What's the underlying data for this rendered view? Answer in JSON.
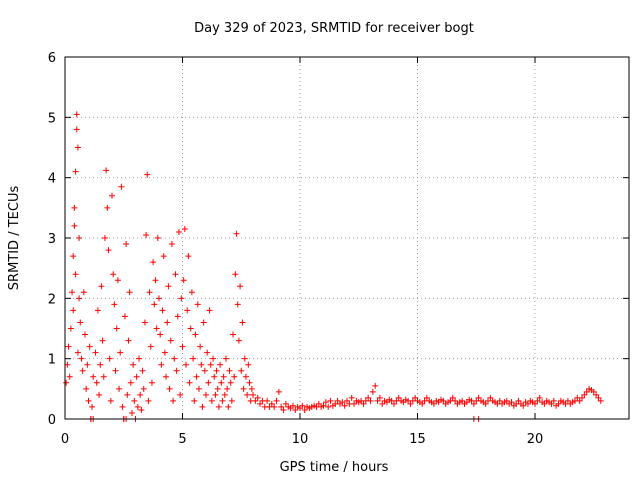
{
  "chart_data": {
    "type": "scatter",
    "title": "Day 329 of 2023, SRMTID for receiver bogt",
    "xlabel": "GPS time / hours",
    "ylabel": "SRMTID / TECUs",
    "xlim": [
      0,
      24
    ],
    "ylim": [
      0,
      6
    ],
    "xticks": [
      0,
      5,
      10,
      15,
      20
    ],
    "yticks": [
      0,
      1,
      2,
      3,
      4,
      5,
      6
    ],
    "grid": true,
    "marker": "+",
    "color": "#ff0000",
    "series": [
      {
        "name": "SRMTID",
        "points": [
          [
            0.05,
            0.6
          ],
          [
            0.1,
            0.9
          ],
          [
            0.15,
            1.2
          ],
          [
            0.2,
            0.7
          ],
          [
            0.25,
            1.5
          ],
          [
            0.3,
            2.1
          ],
          [
            0.35,
            1.8
          ],
          [
            0.35,
            2.7
          ],
          [
            0.4,
            3.5
          ],
          [
            0.4,
            3.2
          ],
          [
            0.45,
            4.1
          ],
          [
            0.45,
            2.4
          ],
          [
            0.5,
            4.8
          ],
          [
            0.5,
            5.05
          ],
          [
            0.55,
            4.5
          ],
          [
            0.55,
            1.1
          ],
          [
            0.6,
            3.0
          ],
          [
            0.6,
            2.0
          ],
          [
            0.65,
            1.6
          ],
          [
            0.7,
            1.0
          ],
          [
            0.75,
            0.8
          ],
          [
            0.8,
            2.1
          ],
          [
            0.85,
            1.4
          ],
          [
            0.9,
            0.5
          ],
          [
            0.95,
            0.9
          ],
          [
            1.0,
            0.3
          ],
          [
            1.05,
            1.2
          ],
          [
            1.1,
            0.0
          ],
          [
            1.15,
            0.2
          ],
          [
            1.2,
            0.7
          ],
          [
            1.3,
            1.1
          ],
          [
            1.35,
            0.6
          ],
          [
            1.4,
            1.8
          ],
          [
            1.45,
            0.4
          ],
          [
            1.5,
            0.9
          ],
          [
            1.55,
            2.2
          ],
          [
            1.6,
            1.3
          ],
          [
            1.65,
            0.7
          ],
          [
            1.7,
            3.0
          ],
          [
            1.75,
            4.12
          ],
          [
            1.8,
            3.5
          ],
          [
            1.85,
            2.8
          ],
          [
            1.9,
            1.0
          ],
          [
            1.95,
            0.3
          ],
          [
            2.0,
            3.7
          ],
          [
            2.05,
            2.4
          ],
          [
            2.1,
            1.9
          ],
          [
            2.15,
            0.8
          ],
          [
            2.2,
            1.5
          ],
          [
            2.25,
            2.3
          ],
          [
            2.3,
            0.5
          ],
          [
            2.35,
            1.1
          ],
          [
            2.4,
            3.85
          ],
          [
            2.45,
            0.2
          ],
          [
            2.5,
            0.0
          ],
          [
            2.55,
            1.7
          ],
          [
            2.6,
            2.9
          ],
          [
            2.65,
            0.4
          ],
          [
            2.7,
            1.3
          ],
          [
            2.75,
            2.1
          ],
          [
            2.8,
            0.6
          ],
          [
            2.85,
            0.1
          ],
          [
            2.9,
            0.9
          ],
          [
            2.95,
            0.3
          ],
          [
            3.0,
            0.0
          ],
          [
            3.05,
            0.7
          ],
          [
            3.1,
            0.2
          ],
          [
            3.15,
            1.0
          ],
          [
            3.2,
            0.4
          ],
          [
            3.25,
            0.15
          ],
          [
            3.3,
            0.8
          ],
          [
            3.35,
            0.5
          ],
          [
            3.4,
            1.6
          ],
          [
            3.45,
            3.05
          ],
          [
            3.5,
            4.05
          ],
          [
            3.55,
            0.3
          ],
          [
            3.6,
            2.1
          ],
          [
            3.65,
            1.2
          ],
          [
            3.7,
            0.6
          ],
          [
            3.75,
            2.6
          ],
          [
            3.8,
            1.9
          ],
          [
            3.85,
            2.3
          ],
          [
            3.9,
            1.5
          ],
          [
            3.95,
            3.0
          ],
          [
            4.0,
            2.0
          ],
          [
            4.05,
            1.4
          ],
          [
            4.1,
            0.9
          ],
          [
            4.15,
            1.8
          ],
          [
            4.2,
            2.7
          ],
          [
            4.25,
            1.1
          ],
          [
            4.3,
            0.7
          ],
          [
            4.35,
            1.6
          ],
          [
            4.4,
            2.2
          ],
          [
            4.45,
            0.5
          ],
          [
            4.5,
            1.3
          ],
          [
            4.55,
            2.9
          ],
          [
            4.6,
            0.3
          ],
          [
            4.65,
            1.0
          ],
          [
            4.7,
            2.4
          ],
          [
            4.75,
            0.8
          ],
          [
            4.8,
            1.7
          ],
          [
            4.85,
            3.1
          ],
          [
            4.9,
            0.4
          ],
          [
            4.95,
            2.0
          ],
          [
            5.0,
            1.2
          ],
          [
            5.05,
            2.3
          ],
          [
            5.1,
            3.15
          ],
          [
            5.15,
            0.9
          ],
          [
            5.2,
            1.8
          ],
          [
            5.25,
            2.7
          ],
          [
            5.3,
            0.6
          ],
          [
            5.35,
            1.5
          ],
          [
            5.4,
            2.1
          ],
          [
            5.45,
            1.0
          ],
          [
            5.5,
            0.3
          ],
          [
            5.55,
            1.4
          ],
          [
            5.6,
            0.7
          ],
          [
            5.65,
            1.9
          ],
          [
            5.7,
            0.5
          ],
          [
            5.75,
            1.2
          ],
          [
            5.8,
            0.9
          ],
          [
            5.85,
            0.2
          ],
          [
            5.9,
            1.6
          ],
          [
            5.95,
            0.8
          ],
          [
            6.0,
            0.4
          ],
          [
            6.05,
            1.1
          ],
          [
            6.1,
            0.6
          ],
          [
            6.15,
            1.8
          ],
          [
            6.2,
            0.9
          ],
          [
            6.25,
            0.3
          ],
          [
            6.3,
            1.0
          ],
          [
            6.35,
            0.7
          ],
          [
            6.4,
            0.4
          ],
          [
            6.45,
            0.8
          ],
          [
            6.5,
            0.5
          ],
          [
            6.55,
            0.2
          ],
          [
            6.6,
            0.9
          ],
          [
            6.65,
            0.6
          ],
          [
            6.7,
            0.3
          ],
          [
            6.75,
            0.7
          ],
          [
            6.8,
            0.4
          ],
          [
            6.85,
            1.0
          ],
          [
            6.9,
            0.5
          ],
          [
            6.95,
            0.2
          ],
          [
            7.0,
            0.8
          ],
          [
            7.05,
            0.6
          ],
          [
            7.1,
            0.3
          ],
          [
            7.15,
            1.4
          ],
          [
            7.2,
            0.7
          ],
          [
            7.25,
            2.4
          ],
          [
            7.3,
            3.07
          ],
          [
            7.35,
            1.9
          ],
          [
            7.4,
            1.3
          ],
          [
            7.45,
            2.2
          ],
          [
            7.5,
            0.8
          ],
          [
            7.55,
            1.6
          ],
          [
            7.6,
            0.5
          ],
          [
            7.65,
            1.0
          ],
          [
            7.7,
            0.7
          ],
          [
            7.75,
            0.4
          ],
          [
            7.8,
            0.9
          ],
          [
            7.85,
            0.6
          ],
          [
            7.9,
            0.3
          ],
          [
            7.95,
            0.5
          ],
          [
            8.0,
            0.4
          ],
          [
            8.1,
            0.3
          ],
          [
            8.2,
            0.35
          ],
          [
            8.3,
            0.25
          ],
          [
            8.4,
            0.3
          ],
          [
            8.5,
            0.2
          ],
          [
            8.6,
            0.3
          ],
          [
            8.7,
            0.2
          ],
          [
            8.8,
            0.25
          ],
          [
            8.9,
            0.2
          ],
          [
            9.0,
            0.3
          ],
          [
            9.1,
            0.45
          ],
          [
            9.2,
            0.2
          ],
          [
            9.3,
            0.15
          ],
          [
            9.4,
            0.25
          ],
          [
            9.5,
            0.2
          ],
          [
            9.6,
            0.18
          ],
          [
            9.7,
            0.22
          ],
          [
            9.8,
            0.15
          ],
          [
            9.9,
            0.2
          ],
          [
            10.0,
            0.18
          ],
          [
            10.1,
            0.22
          ],
          [
            10.2,
            0.15
          ],
          [
            10.3,
            0.2
          ],
          [
            10.4,
            0.18
          ],
          [
            10.5,
            0.2
          ],
          [
            10.6,
            0.22
          ],
          [
            10.7,
            0.2
          ],
          [
            10.8,
            0.25
          ],
          [
            10.9,
            0.2
          ],
          [
            11.0,
            0.22
          ],
          [
            11.1,
            0.28
          ],
          [
            11.2,
            0.2
          ],
          [
            11.3,
            0.3
          ],
          [
            11.4,
            0.22
          ],
          [
            11.5,
            0.25
          ],
          [
            11.6,
            0.3
          ],
          [
            11.7,
            0.25
          ],
          [
            11.8,
            0.28
          ],
          [
            11.9,
            0.22
          ],
          [
            12.0,
            0.3
          ],
          [
            12.1,
            0.25
          ],
          [
            12.2,
            0.35
          ],
          [
            12.3,
            0.25
          ],
          [
            12.4,
            0.3
          ],
          [
            12.5,
            0.28
          ],
          [
            12.6,
            0.3
          ],
          [
            12.7,
            0.25
          ],
          [
            12.8,
            0.3
          ],
          [
            12.9,
            0.35
          ],
          [
            13.0,
            0.3
          ],
          [
            13.1,
            0.45
          ],
          [
            13.2,
            0.55
          ],
          [
            13.3,
            0.3
          ],
          [
            13.4,
            0.35
          ],
          [
            13.5,
            0.25
          ],
          [
            13.6,
            0.3
          ],
          [
            13.7,
            0.28
          ],
          [
            13.8,
            0.32
          ],
          [
            13.9,
            0.3
          ],
          [
            14.0,
            0.25
          ],
          [
            14.1,
            0.3
          ],
          [
            14.2,
            0.35
          ],
          [
            14.3,
            0.3
          ],
          [
            14.4,
            0.28
          ],
          [
            14.5,
            0.32
          ],
          [
            14.6,
            0.3
          ],
          [
            14.7,
            0.25
          ],
          [
            14.8,
            0.3
          ],
          [
            14.9,
            0.35
          ],
          [
            15.0,
            0.3
          ],
          [
            15.1,
            0.28
          ],
          [
            15.2,
            0.25
          ],
          [
            15.3,
            0.3
          ],
          [
            15.4,
            0.35
          ],
          [
            15.5,
            0.3
          ],
          [
            15.6,
            0.28
          ],
          [
            15.7,
            0.25
          ],
          [
            15.8,
            0.3
          ],
          [
            15.9,
            0.28
          ],
          [
            16.0,
            0.32
          ],
          [
            16.1,
            0.3
          ],
          [
            16.2,
            0.25
          ],
          [
            16.3,
            0.28
          ],
          [
            16.4,
            0.3
          ],
          [
            16.5,
            0.35
          ],
          [
            16.6,
            0.3
          ],
          [
            16.7,
            0.25
          ],
          [
            16.8,
            0.28
          ],
          [
            16.9,
            0.3
          ],
          [
            17.0,
            0.25
          ],
          [
            17.1,
            0.28
          ],
          [
            17.2,
            0.32
          ],
          [
            17.3,
            0.3
          ],
          [
            17.4,
            0.25
          ],
          [
            17.5,
            0.3
          ],
          [
            17.6,
            0.35
          ],
          [
            17.7,
            0.3
          ],
          [
            17.8,
            0.28
          ],
          [
            17.9,
            0.25
          ],
          [
            18.0,
            0.3
          ],
          [
            18.1,
            0.35
          ],
          [
            18.2,
            0.3
          ],
          [
            18.3,
            0.28
          ],
          [
            18.4,
            0.25
          ],
          [
            18.5,
            0.3
          ],
          [
            18.6,
            0.25
          ],
          [
            18.7,
            0.28
          ],
          [
            18.8,
            0.3
          ],
          [
            18.9,
            0.25
          ],
          [
            19.0,
            0.28
          ],
          [
            19.1,
            0.22
          ],
          [
            19.2,
            0.25
          ],
          [
            19.3,
            0.3
          ],
          [
            19.4,
            0.25
          ],
          [
            19.5,
            0.22
          ],
          [
            19.6,
            0.28
          ],
          [
            19.7,
            0.25
          ],
          [
            19.8,
            0.3
          ],
          [
            19.9,
            0.28
          ],
          [
            20.0,
            0.25
          ],
          [
            20.1,
            0.3
          ],
          [
            20.2,
            0.35
          ],
          [
            20.3,
            0.28
          ],
          [
            20.4,
            0.25
          ],
          [
            20.5,
            0.3
          ],
          [
            20.6,
            0.28
          ],
          [
            20.7,
            0.25
          ],
          [
            20.8,
            0.3
          ],
          [
            20.9,
            0.22
          ],
          [
            21.0,
            0.25
          ],
          [
            21.1,
            0.3
          ],
          [
            21.2,
            0.28
          ],
          [
            21.3,
            0.25
          ],
          [
            21.4,
            0.3
          ],
          [
            21.5,
            0.25
          ],
          [
            21.6,
            0.28
          ],
          [
            21.7,
            0.3
          ],
          [
            21.8,
            0.35
          ],
          [
            21.9,
            0.3
          ],
          [
            22.0,
            0.35
          ],
          [
            22.1,
            0.4
          ],
          [
            22.2,
            0.45
          ],
          [
            22.3,
            0.5
          ],
          [
            22.4,
            0.48
          ],
          [
            22.5,
            0.45
          ],
          [
            22.6,
            0.4
          ],
          [
            22.7,
            0.35
          ],
          [
            22.8,
            0.3
          ],
          [
            1.1,
            0.0
          ],
          [
            1.2,
            0.0
          ],
          [
            2.5,
            0.0
          ],
          [
            2.6,
            0.0
          ],
          [
            3.0,
            0.0
          ],
          [
            17.4,
            0.0
          ],
          [
            17.6,
            0.0
          ]
        ]
      }
    ]
  }
}
